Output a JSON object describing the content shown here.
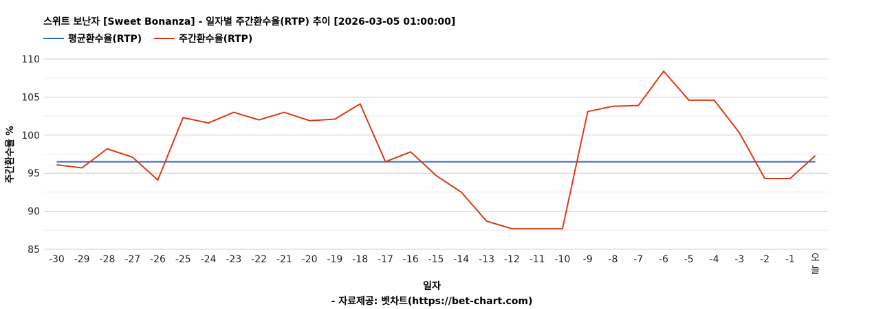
{
  "chart_data": {
    "type": "line",
    "title": "스위트 보난자 [Sweet Bonanza] - 일자별 주간환수율(RTP) 추이 [2026-03-05 01:00:00]",
    "xlabel": "일자",
    "ylabel": "주간환수율 %",
    "source": "- 자료제공: 벳차트(https://bet-chart.com)",
    "ylim": [
      85,
      110
    ],
    "yticks": [
      "85",
      "90",
      "95",
      "100",
      "105",
      "110"
    ],
    "grid": true,
    "legend_position": "top-left",
    "categories": [
      "-30",
      "-29",
      "-28",
      "-27",
      "-26",
      "-25",
      "-24",
      "-23",
      "-22",
      "-21",
      "-20",
      "-19",
      "-18",
      "-17",
      "-16",
      "-15",
      "-14",
      "-13",
      "-12",
      "-11",
      "-10",
      "-9",
      "-8",
      "-7",
      "-6",
      "-5",
      "-4",
      "-3",
      "-2",
      "-1",
      "오늘"
    ],
    "series": [
      {
        "name": "평균환수율(RTP)",
        "color": "#3366cc",
        "values": [
          96.5,
          96.5,
          96.5,
          96.5,
          96.5,
          96.5,
          96.5,
          96.5,
          96.5,
          96.5,
          96.5,
          96.5,
          96.5,
          96.5,
          96.5,
          96.5,
          96.5,
          96.5,
          96.5,
          96.5,
          96.5,
          96.5,
          96.5,
          96.5,
          96.5,
          96.5,
          96.5,
          96.5,
          96.5,
          96.5,
          96.5
        ]
      },
      {
        "name": "주간환수율(RTP)",
        "color": "#dc3912",
        "values": [
          96.1,
          95.7,
          98.2,
          97.1,
          94.1,
          102.3,
          101.6,
          103.0,
          102.0,
          103.0,
          101.9,
          102.1,
          104.1,
          96.5,
          97.8,
          94.7,
          92.5,
          88.7,
          87.7,
          87.7,
          87.7,
          103.1,
          103.8,
          103.9,
          108.4,
          104.6,
          104.6,
          100.3,
          94.3,
          94.3,
          97.3
        ]
      }
    ]
  }
}
